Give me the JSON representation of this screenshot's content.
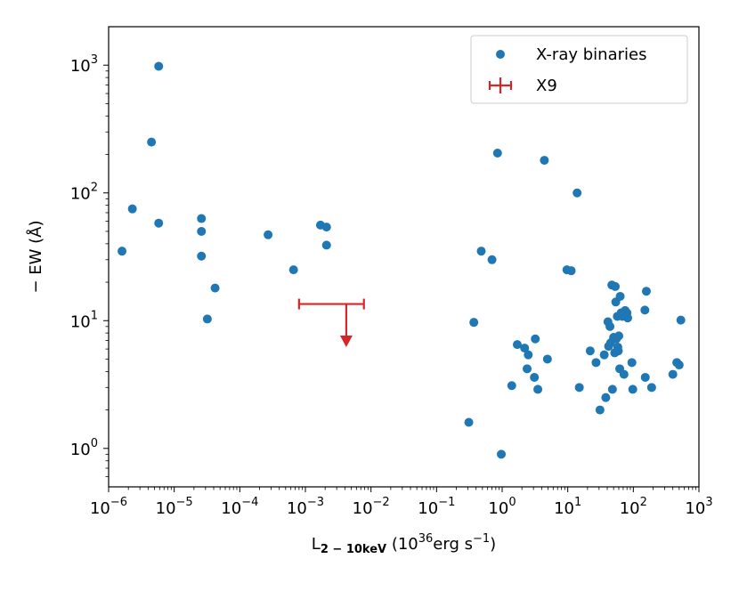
{
  "chart_data": {
    "type": "scatter",
    "x_scale": "log",
    "y_scale": "log",
    "xlim": [
      1e-06,
      1000
    ],
    "ylim": [
      0.5,
      2000
    ],
    "x_tick_values": [
      1e-06,
      1e-05,
      0.0001,
      0.001,
      0.01,
      0.1,
      1,
      10,
      100,
      1000
    ],
    "x_tick_exponents": [
      "−6",
      "−5",
      "−4",
      "−3",
      "−2",
      "−1",
      "0",
      "1",
      "2",
      "3"
    ],
    "y_tick_values": [
      1,
      10,
      100,
      1000
    ],
    "y_tick_exponents": [
      "0",
      "1",
      "2",
      "3"
    ],
    "tick_base": "10",
    "xlabel": {
      "symbol": "L",
      "subscript": "2 − 10keV",
      "open": " (10",
      "power": "36",
      "unit": "erg s",
      "unit_power": "−1",
      "close": ")"
    },
    "ylabel": "− EW (Å)",
    "legend_position": "top-right",
    "grid": false,
    "series": [
      {
        "name": "X-ray binaries",
        "marker": "circle",
        "color": "#1f77b4",
        "points": [
          [
            1.6e-06,
            35
          ],
          [
            2.3e-06,
            75
          ],
          [
            4.5e-06,
            250
          ],
          [
            5.8e-06,
            980
          ],
          [
            5.8e-06,
            58
          ],
          [
            2.6e-05,
            63
          ],
          [
            2.6e-05,
            50
          ],
          [
            2.6e-05,
            32
          ],
          [
            3.2e-05,
            10.3
          ],
          [
            4.2e-05,
            18
          ],
          [
            0.00027,
            47
          ],
          [
            0.00066,
            25
          ],
          [
            0.0017,
            56
          ],
          [
            0.0021,
            54
          ],
          [
            0.0021,
            39
          ],
          [
            0.31,
            1.6
          ],
          [
            0.37,
            9.7
          ],
          [
            0.48,
            35
          ],
          [
            0.7,
            30
          ],
          [
            0.85,
            205
          ],
          [
            0.97,
            0.9
          ],
          [
            1.4,
            3.1
          ],
          [
            1.7,
            6.5
          ],
          [
            2.2,
            6.1
          ],
          [
            2.4,
            4.2
          ],
          [
            2.5,
            5.4
          ],
          [
            3.1,
            3.6
          ],
          [
            3.2,
            7.2
          ],
          [
            3.5,
            2.9
          ],
          [
            4.4,
            180
          ],
          [
            4.9,
            5.0
          ],
          [
            9.7,
            25
          ],
          [
            11.3,
            24.6
          ],
          [
            13.9,
            100
          ],
          [
            15,
            3.0
          ],
          [
            22,
            5.8
          ],
          [
            27,
            4.7
          ],
          [
            31,
            2.0
          ],
          [
            36,
            5.4
          ],
          [
            38,
            2.5
          ],
          [
            41,
            9.8
          ],
          [
            42,
            6.3
          ],
          [
            44,
            9.0
          ],
          [
            45,
            6.7
          ],
          [
            47,
            19
          ],
          [
            48,
            2.9
          ],
          [
            50,
            7.4
          ],
          [
            52,
            5.6
          ],
          [
            53,
            18.5
          ],
          [
            54,
            14
          ],
          [
            55,
            7.2
          ],
          [
            57,
            10.8
          ],
          [
            58,
            6.2
          ],
          [
            59,
            5.8
          ],
          [
            60,
            7.6
          ],
          [
            62,
            4.2
          ],
          [
            63,
            15.5
          ],
          [
            65,
            11.5
          ],
          [
            68,
            10.8
          ],
          [
            72,
            3.8
          ],
          [
            75,
            12.0
          ],
          [
            80,
            11.5
          ],
          [
            82,
            10.5
          ],
          [
            95,
            4.7
          ],
          [
            98,
            2.9
          ],
          [
            150,
            12.1
          ],
          [
            152,
            3.6
          ],
          [
            158,
            17.0
          ],
          [
            190,
            3.0
          ],
          [
            400,
            3.8
          ],
          [
            460,
            4.7
          ],
          [
            500,
            4.5
          ],
          [
            530,
            10.1
          ]
        ]
      },
      {
        "name": "X9",
        "marker": "errorbar-upper-limit",
        "color": "#d62728",
        "x": 0.0042,
        "x_low": 0.0008,
        "x_high": 0.0078,
        "y": 13.5,
        "arrow_to": 6.2
      }
    ]
  }
}
